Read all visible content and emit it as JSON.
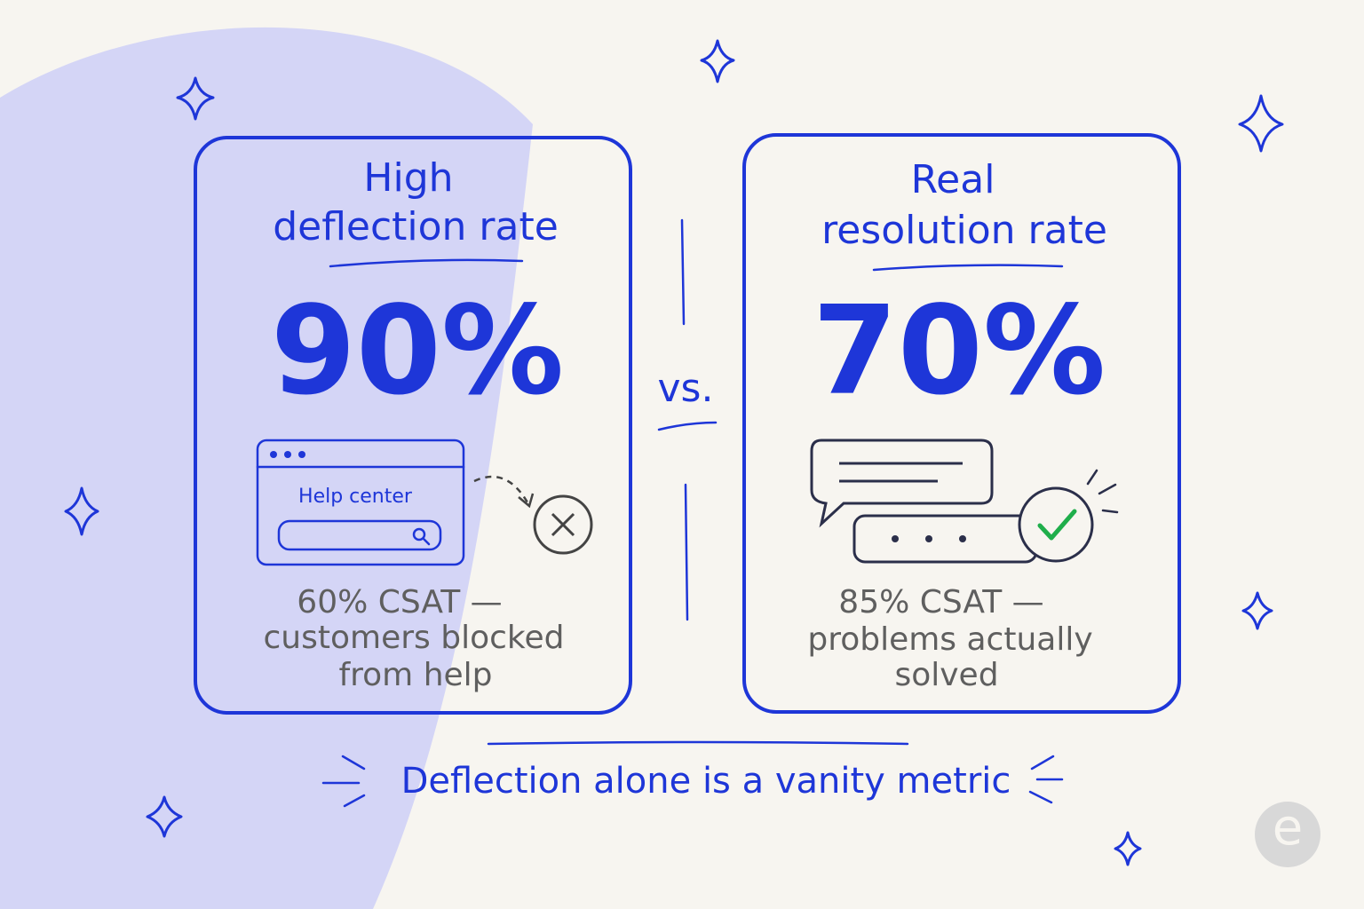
{
  "left_card": {
    "title_lines": [
      "High",
      "deflection rate"
    ],
    "metric": "90%",
    "illustration_label": "Help center",
    "caption_lines": [
      "60% CSAT —",
      "customers blocked",
      "from help"
    ]
  },
  "separator": "vs.",
  "right_card": {
    "title_lines": [
      "Real",
      "resolution rate"
    ],
    "metric": "70%",
    "caption_lines": [
      "85% CSAT —",
      "problems actually",
      "solved"
    ]
  },
  "tagline": "Deflection alone is a vanity metric",
  "logo": {
    "letter": "e"
  }
}
